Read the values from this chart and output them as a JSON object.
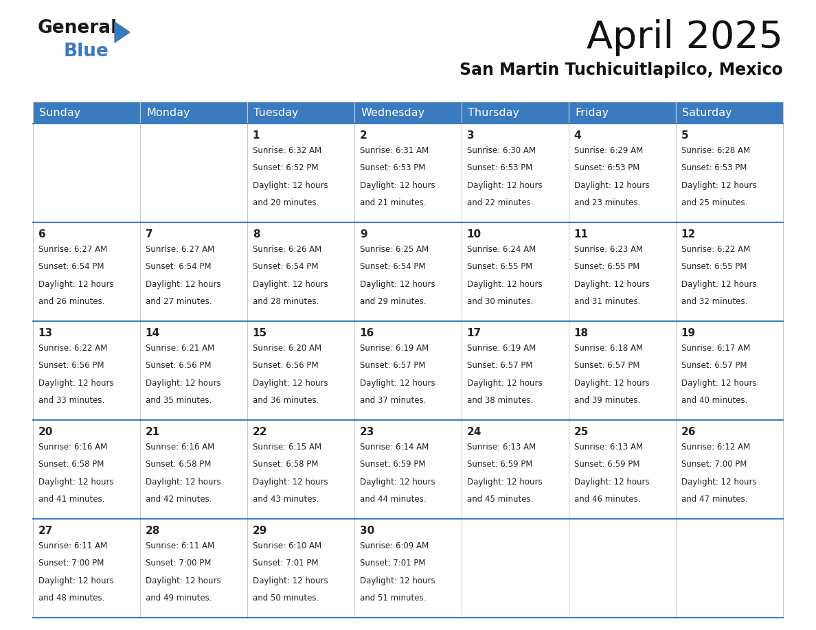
{
  "title": "April 2025",
  "subtitle": "San Martin Tuchicuitlapilco, Mexico",
  "header_color": "#3a7abf",
  "header_text_color": "#ffffff",
  "border_color": "#3a7abf",
  "text_color": "#222222",
  "day_headers": [
    "Sunday",
    "Monday",
    "Tuesday",
    "Wednesday",
    "Thursday",
    "Friday",
    "Saturday"
  ],
  "weeks": [
    [
      {
        "day": "",
        "sunrise": "",
        "sunset": "",
        "daylight": ""
      },
      {
        "day": "",
        "sunrise": "",
        "sunset": "",
        "daylight": ""
      },
      {
        "day": "1",
        "sunrise": "6:32 AM",
        "sunset": "6:52 PM",
        "daylight": "20 minutes."
      },
      {
        "day": "2",
        "sunrise": "6:31 AM",
        "sunset": "6:53 PM",
        "daylight": "21 minutes."
      },
      {
        "day": "3",
        "sunrise": "6:30 AM",
        "sunset": "6:53 PM",
        "daylight": "22 minutes."
      },
      {
        "day": "4",
        "sunrise": "6:29 AM",
        "sunset": "6:53 PM",
        "daylight": "23 minutes."
      },
      {
        "day": "5",
        "sunrise": "6:28 AM",
        "sunset": "6:53 PM",
        "daylight": "25 minutes."
      }
    ],
    [
      {
        "day": "6",
        "sunrise": "6:27 AM",
        "sunset": "6:54 PM",
        "daylight": "26 minutes."
      },
      {
        "day": "7",
        "sunrise": "6:27 AM",
        "sunset": "6:54 PM",
        "daylight": "27 minutes."
      },
      {
        "day": "8",
        "sunrise": "6:26 AM",
        "sunset": "6:54 PM",
        "daylight": "28 minutes."
      },
      {
        "day": "9",
        "sunrise": "6:25 AM",
        "sunset": "6:54 PM",
        "daylight": "29 minutes."
      },
      {
        "day": "10",
        "sunrise": "6:24 AM",
        "sunset": "6:55 PM",
        "daylight": "30 minutes."
      },
      {
        "day": "11",
        "sunrise": "6:23 AM",
        "sunset": "6:55 PM",
        "daylight": "31 minutes."
      },
      {
        "day": "12",
        "sunrise": "6:22 AM",
        "sunset": "6:55 PM",
        "daylight": "32 minutes."
      }
    ],
    [
      {
        "day": "13",
        "sunrise": "6:22 AM",
        "sunset": "6:56 PM",
        "daylight": "33 minutes."
      },
      {
        "day": "14",
        "sunrise": "6:21 AM",
        "sunset": "6:56 PM",
        "daylight": "35 minutes."
      },
      {
        "day": "15",
        "sunrise": "6:20 AM",
        "sunset": "6:56 PM",
        "daylight": "36 minutes."
      },
      {
        "day": "16",
        "sunrise": "6:19 AM",
        "sunset": "6:57 PM",
        "daylight": "37 minutes."
      },
      {
        "day": "17",
        "sunrise": "6:19 AM",
        "sunset": "6:57 PM",
        "daylight": "38 minutes."
      },
      {
        "day": "18",
        "sunrise": "6:18 AM",
        "sunset": "6:57 PM",
        "daylight": "39 minutes."
      },
      {
        "day": "19",
        "sunrise": "6:17 AM",
        "sunset": "6:57 PM",
        "daylight": "40 minutes."
      }
    ],
    [
      {
        "day": "20",
        "sunrise": "6:16 AM",
        "sunset": "6:58 PM",
        "daylight": "41 minutes."
      },
      {
        "day": "21",
        "sunrise": "6:16 AM",
        "sunset": "6:58 PM",
        "daylight": "42 minutes."
      },
      {
        "day": "22",
        "sunrise": "6:15 AM",
        "sunset": "6:58 PM",
        "daylight": "43 minutes."
      },
      {
        "day": "23",
        "sunrise": "6:14 AM",
        "sunset": "6:59 PM",
        "daylight": "44 minutes."
      },
      {
        "day": "24",
        "sunrise": "6:13 AM",
        "sunset": "6:59 PM",
        "daylight": "45 minutes."
      },
      {
        "day": "25",
        "sunrise": "6:13 AM",
        "sunset": "6:59 PM",
        "daylight": "46 minutes."
      },
      {
        "day": "26",
        "sunrise": "6:12 AM",
        "sunset": "7:00 PM",
        "daylight": "47 minutes."
      }
    ],
    [
      {
        "day": "27",
        "sunrise": "6:11 AM",
        "sunset": "7:00 PM",
        "daylight": "48 minutes."
      },
      {
        "day": "28",
        "sunrise": "6:11 AM",
        "sunset": "7:00 PM",
        "daylight": "49 minutes."
      },
      {
        "day": "29",
        "sunrise": "6:10 AM",
        "sunset": "7:01 PM",
        "daylight": "50 minutes."
      },
      {
        "day": "30",
        "sunrise": "6:09 AM",
        "sunset": "7:01 PM",
        "daylight": "51 minutes."
      },
      {
        "day": "",
        "sunrise": "",
        "sunset": "",
        "daylight": ""
      },
      {
        "day": "",
        "sunrise": "",
        "sunset": "",
        "daylight": ""
      },
      {
        "day": "",
        "sunrise": "",
        "sunset": "",
        "daylight": ""
      }
    ]
  ],
  "logo_general_color": "#1a1a1a",
  "logo_blue_color": "#3a7abf",
  "logo_triangle_color": "#3a7abf"
}
